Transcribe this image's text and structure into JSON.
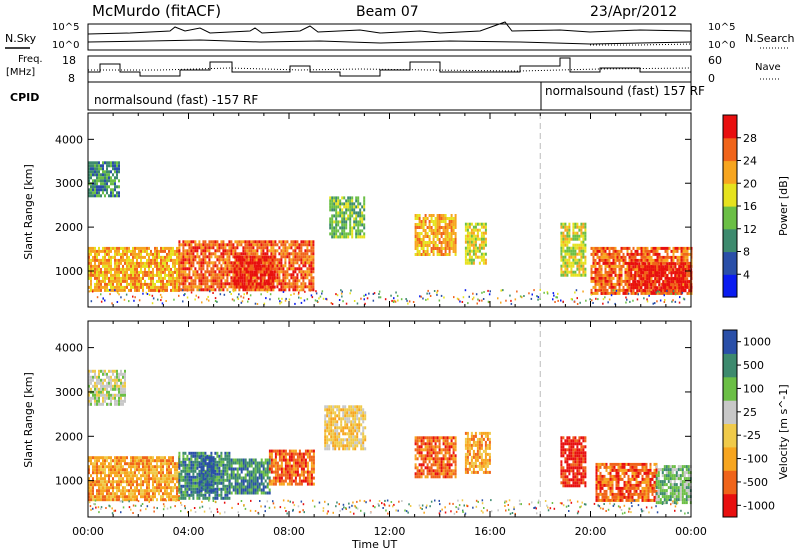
{
  "header": {
    "station": "McMurdo (fitACF)",
    "beam": "Beam 07",
    "date": "23/Apr/2012"
  },
  "top_panels": {
    "nsky_label": "N.Sky",
    "nsearch_label": "N.Search",
    "freq_label_line1": "Freq.",
    "freq_label_line2": "[MHz]",
    "nave_label": "Nave",
    "cpid_label": "CPID",
    "noise_ticks": [
      "10^5",
      "10^0"
    ],
    "freq_ticks": [
      "18",
      "8"
    ],
    "nave_ticks": [
      "60",
      "0"
    ],
    "cpid_segments": [
      {
        "label": "normalsound (fast) -157 RF",
        "start_hour": 0,
        "end_hour": 18
      },
      {
        "label": "normalsound (fast) 157 RF",
        "start_hour": 18,
        "end_hour": 24
      }
    ]
  },
  "colors": {
    "power_scale": [
      "#0a1cf0",
      "#2a4fa8",
      "#3d8a6e",
      "#6bbf45",
      "#e6e21e",
      "#f7a51f",
      "#f0641a",
      "#e80f0f"
    ],
    "velocity_scale": [
      "#e80f0f",
      "#f0641a",
      "#f7a51f",
      "#f0ca4a",
      "#c8c8c8",
      "#6bbf45",
      "#3d8a6e",
      "#2a4fa8"
    ]
  },
  "chart_data": [
    {
      "type": "heatmap",
      "name": "power",
      "xlabel": "",
      "ylabel": "Slant Range [km]",
      "xlim": [
        0,
        24
      ],
      "ylim": [
        180,
        4600
      ],
      "yticks": [
        1000,
        2000,
        3000,
        4000
      ],
      "colorbar_label": "Power [dB]",
      "colorbar_ticks": [
        "4",
        "8",
        "12",
        "16",
        "20",
        "24",
        "28"
      ],
      "regions": [
        {
          "t0": 0.0,
          "t1": 3.6,
          "r0": 550,
          "r1": 1550,
          "level": 5
        },
        {
          "t0": 0.0,
          "t1": 1.2,
          "r0": 2700,
          "r1": 3500,
          "level": 2
        },
        {
          "t0": 3.6,
          "t1": 9.0,
          "r0": 600,
          "r1": 1700,
          "level": 6
        },
        {
          "t0": 5.8,
          "t1": 7.4,
          "r0": 650,
          "r1": 1350,
          "level": 7
        },
        {
          "t0": 9.6,
          "t1": 11.0,
          "r0": 1800,
          "r1": 2700,
          "level": 3
        },
        {
          "t0": 13.0,
          "t1": 14.6,
          "r0": 1400,
          "r1": 2300,
          "level": 5
        },
        {
          "t0": 15.0,
          "t1": 15.8,
          "r0": 1200,
          "r1": 2100,
          "level": 4
        },
        {
          "t0": 18.8,
          "t1": 19.8,
          "r0": 900,
          "r1": 2100,
          "level": 4
        },
        {
          "t0": 20.0,
          "t1": 24.0,
          "r0": 500,
          "r1": 1550,
          "level": 6
        },
        {
          "t0": 21.5,
          "t1": 24.0,
          "r0": 550,
          "r1": 1200,
          "level": 7
        }
      ]
    },
    {
      "type": "heatmap",
      "name": "velocity",
      "xlabel": "Time UT",
      "ylabel": "Slant Range [km]",
      "xlim": [
        0,
        24
      ],
      "ylim": [
        180,
        4600
      ],
      "yticks": [
        1000,
        2000,
        3000,
        4000
      ],
      "xticks": [
        "00:00",
        "04:00",
        "08:00",
        "12:00",
        "16:00",
        "20:00",
        "00:00"
      ],
      "colorbar_label": "Velocity [m s^-1]",
      "colorbar_ticks": [
        "1000",
        "500",
        "100",
        "25",
        "-25",
        "-100",
        "-500",
        "-1000"
      ],
      "regions": [
        {
          "t0": 0.0,
          "t1": 3.6,
          "r0": 550,
          "r1": 1550,
          "level": 2
        },
        {
          "t0": 0.0,
          "t1": 1.5,
          "r0": 2700,
          "r1": 3500,
          "level": 4
        },
        {
          "t0": 3.6,
          "t1": 5.6,
          "r0": 600,
          "r1": 1650,
          "level": 6
        },
        {
          "t0": 4.4,
          "t1": 5.0,
          "r0": 800,
          "r1": 1550,
          "level": 7
        },
        {
          "t0": 5.6,
          "t1": 7.2,
          "r0": 700,
          "r1": 1500,
          "level": 6
        },
        {
          "t0": 7.2,
          "t1": 9.0,
          "r0": 900,
          "r1": 1700,
          "level": 1
        },
        {
          "t0": 9.4,
          "t1": 11.0,
          "r0": 1700,
          "r1": 2700,
          "level": 3
        },
        {
          "t0": 13.0,
          "t1": 14.6,
          "r0": 1100,
          "r1": 2000,
          "level": 1
        },
        {
          "t0": 15.0,
          "t1": 16.0,
          "r0": 1200,
          "r1": 2100,
          "level": 2
        },
        {
          "t0": 18.8,
          "t1": 19.8,
          "r0": 900,
          "r1": 2000,
          "level": 0
        },
        {
          "t0": 20.2,
          "t1": 22.6,
          "r0": 550,
          "r1": 1400,
          "level": 1
        },
        {
          "t0": 22.6,
          "t1": 24.0,
          "r0": 500,
          "r1": 1350,
          "level": 5
        }
      ]
    }
  ]
}
